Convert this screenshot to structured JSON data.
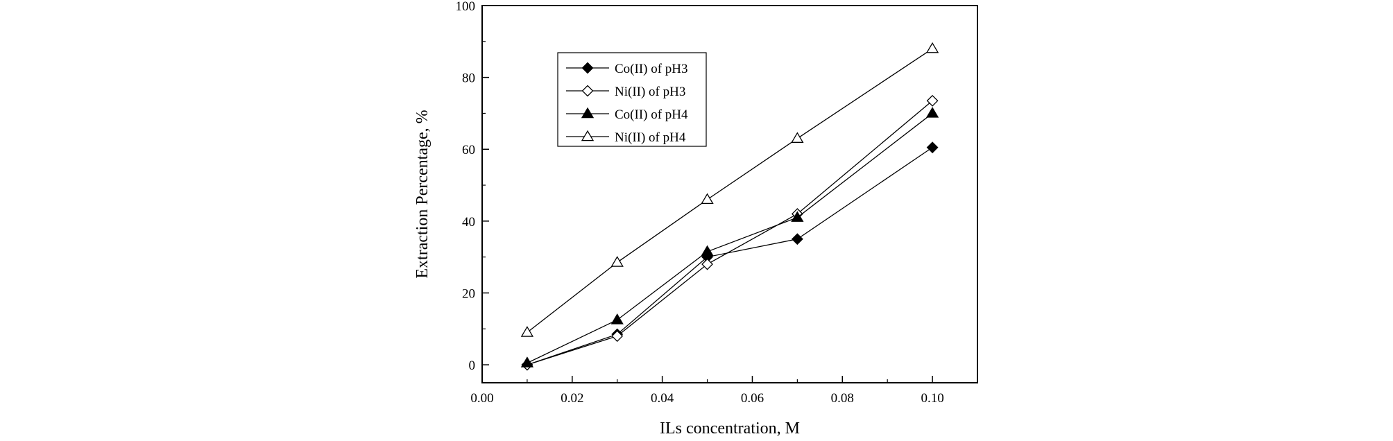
{
  "chart_data": {
    "type": "line",
    "title": "",
    "xlabel": "ILs concentration, M",
    "ylabel": "Extraction Percentage, %",
    "xlim": [
      0.0,
      0.11
    ],
    "ylim": [
      -5,
      100
    ],
    "xticks": [
      "0.00",
      "0.02",
      "0.04",
      "0.06",
      "0.08",
      "0.10"
    ],
    "yticks": [
      "0",
      "20",
      "40",
      "60",
      "80",
      "100"
    ],
    "grid": false,
    "legend_position": "top-left",
    "x": [
      0.01,
      0.03,
      0.05,
      0.07,
      0.1
    ],
    "series": [
      {
        "name": "Co(II) of pH3",
        "marker": "diamond-filled",
        "values": [
          0,
          8.5,
          30,
          35,
          60.5
        ]
      },
      {
        "name": "Ni(II) of pH3",
        "marker": "diamond-open",
        "values": [
          0,
          8,
          28,
          42,
          73.5
        ]
      },
      {
        "name": "Co(II) of pH4",
        "marker": "triangle-filled",
        "values": [
          0.5,
          12.5,
          31.5,
          41,
          70
        ]
      },
      {
        "name": "Ni(II) of pH4",
        "marker": "triangle-open",
        "values": [
          9,
          28.5,
          46,
          63,
          88
        ]
      }
    ]
  }
}
